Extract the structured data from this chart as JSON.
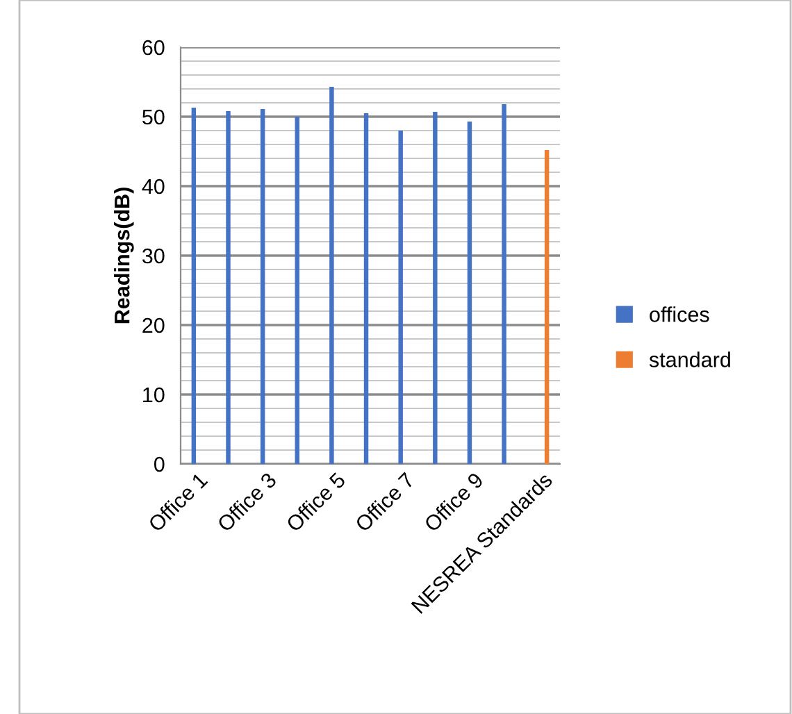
{
  "chart_data": {
    "type": "bar",
    "ylabel": "Readings(dB)",
    "categories": [
      "Office 1",
      null,
      "Office 3",
      null,
      "Office 5",
      null,
      "Office 7",
      null,
      "Office 9",
      null,
      "NESREA Standards"
    ],
    "series": [
      {
        "name": "offices",
        "color": "#4472c4",
        "values": [
          51.3,
          50.8,
          51.1,
          50.0,
          54.3,
          50.5,
          48.0,
          50.7,
          49.3,
          51.8,
          null
        ]
      },
      {
        "name": "standard",
        "color": "#ed7d31",
        "values": [
          null,
          null,
          null,
          null,
          null,
          null,
          null,
          null,
          null,
          null,
          45.2
        ]
      }
    ],
    "ylim": [
      0,
      60
    ],
    "yticks": [
      0,
      {
        "value": 2,
        "label": null
      },
      {
        "value": 4,
        "label": null
      },
      {
        "value": 6,
        "label": null
      },
      {
        "value": 8,
        "label": null
      },
      10,
      {
        "value": 12,
        "label": null
      },
      {
        "value": 14,
        "label": null
      },
      {
        "value": 16,
        "label": null
      },
      {
        "value": 18,
        "label": null
      },
      20,
      {
        "value": 22,
        "label": null
      },
      {
        "value": 24,
        "label": null
      },
      {
        "value": 26,
        "label": null
      },
      {
        "value": 28,
        "label": null
      },
      30,
      {
        "value": 32,
        "label": null
      },
      {
        "value": 34,
        "label": null
      },
      {
        "value": 36,
        "label": null
      },
      {
        "value": 38,
        "label": null
      },
      40,
      {
        "value": 42,
        "label": null
      },
      {
        "value": 44,
        "label": null
      },
      {
        "value": 46,
        "label": null
      },
      {
        "value": 48,
        "label": null
      },
      50,
      {
        "value": 52,
        "label": null
      },
      {
        "value": 54,
        "label": null
      },
      {
        "value": 56,
        "label": null
      },
      {
        "value": 58,
        "label": null
      },
      60
    ],
    "grid": "y",
    "legend": "right"
  }
}
